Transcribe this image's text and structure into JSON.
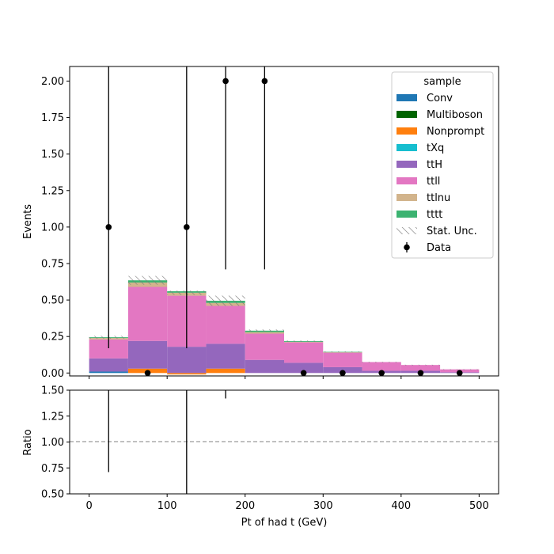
{
  "chart_data": [
    {
      "type": "bar",
      "stacked": true,
      "ylabel": "Events",
      "ylim": [
        -0.02,
        2.1
      ],
      "yticks": [
        "0.00",
        "0.25",
        "0.50",
        "0.75",
        "1.00",
        "1.25",
        "1.50",
        "1.75",
        "2.00"
      ],
      "bin_edges": [
        0,
        50,
        100,
        150,
        200,
        250,
        300,
        350,
        400,
        450,
        500
      ],
      "legend": {
        "title": "sample",
        "placement": "top-right",
        "stat_label": "Stat. Unc.",
        "data_label": "Data"
      },
      "series": [
        {
          "name": "Conv",
          "color": "#1f77b4",
          "values": [
            0.01,
            0.0,
            0.0,
            0.0,
            0.0,
            0.0,
            0.0,
            0.0,
            0.0,
            0.0
          ]
        },
        {
          "name": "Multiboson",
          "color": "#006400",
          "values": [
            0.0,
            0.0,
            0.0,
            0.0,
            0.0,
            0.0,
            0.0,
            0.0,
            0.0,
            0.0
          ]
        },
        {
          "name": "Nonprompt",
          "color": "#ff7f0e",
          "values": [
            0.0,
            0.03,
            -0.01,
            0.03,
            0.0,
            0.0,
            0.0,
            0.0,
            0.0,
            0.0
          ]
        },
        {
          "name": "tXq",
          "color": "#17becf",
          "values": [
            0.0,
            0.0,
            0.0,
            0.0,
            0.0,
            0.0,
            0.0,
            0.0,
            0.0,
            0.0
          ]
        },
        {
          "name": "ttH",
          "color": "#9467bd",
          "values": [
            0.09,
            0.19,
            0.18,
            0.17,
            0.09,
            0.07,
            0.04,
            0.015,
            0.015,
            0.005
          ]
        },
        {
          "name": "ttll",
          "color": "#e377c2",
          "values": [
            0.13,
            0.37,
            0.35,
            0.26,
            0.18,
            0.14,
            0.1,
            0.06,
            0.04,
            0.02
          ]
        },
        {
          "name": "ttlnu",
          "color": "#d2b48c",
          "values": [
            0.01,
            0.03,
            0.02,
            0.02,
            0.01,
            0.003,
            0.002,
            0.0,
            0.0,
            0.0
          ]
        },
        {
          "name": "tttt",
          "color": "#3cb371",
          "values": [
            0.005,
            0.015,
            0.01,
            0.015,
            0.01,
            0.005,
            0.003,
            0.0,
            0.0,
            0.0
          ]
        }
      ],
      "stat_unc": [
        0.01,
        0.03,
        0.015,
        0.035,
        0.008,
        0.005,
        0.003,
        0.002,
        0.002,
        0.001
      ],
      "data": {
        "x": [
          25,
          75,
          125,
          175,
          225,
          275,
          325,
          375,
          425,
          475
        ],
        "y": [
          1,
          0,
          1,
          2,
          2,
          0,
          0,
          0,
          0,
          0
        ],
        "err_low": [
          0.83,
          0,
          0.83,
          1.29,
          1.29,
          0,
          0,
          0,
          0,
          0
        ],
        "err_high": [
          2.3,
          0,
          2.3,
          2.64,
          2.64,
          0,
          0,
          0,
          0,
          0
        ]
      }
    },
    {
      "type": "ratio",
      "ylabel": "Ratio",
      "xlabel": "Pt of had t (GeV)",
      "ylim": [
        0.5,
        1.5
      ],
      "yticks": [
        "0.50",
        "0.75",
        "1.00",
        "1.25",
        "1.50"
      ],
      "xlim": [
        -25,
        525
      ],
      "xticks": [
        "0",
        "100",
        "200",
        "300",
        "400",
        "500"
      ],
      "reference_line": 1.0,
      "ratio_errorbars": [
        {
          "x": 25,
          "low": 0.71,
          "high": 1.5
        },
        {
          "x": 125,
          "low": 0.5,
          "high": 1.5
        },
        {
          "x": 175,
          "low": 1.42,
          "high": 1.5
        }
      ]
    }
  ]
}
